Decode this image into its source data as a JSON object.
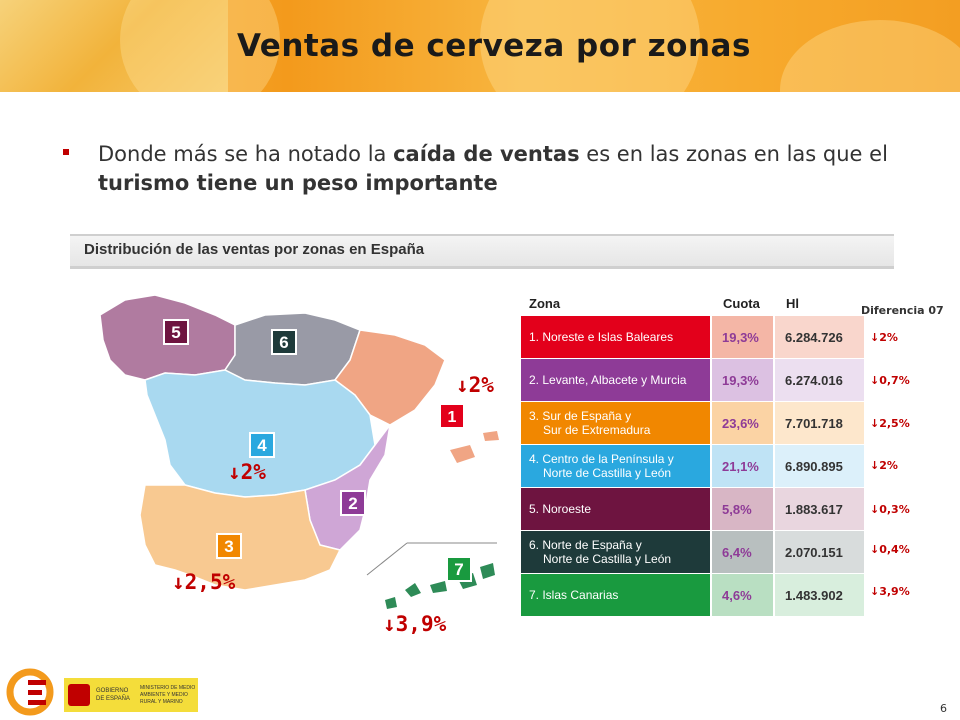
{
  "header": {
    "title": "Ventas de cerveza por zonas"
  },
  "bullet": {
    "part1": "Donde más se ha notado la ",
    "bold1": "caída de ventas",
    "part2": " es en las zonas en las que el ",
    "bold2": "turismo tiene un peso importante"
  },
  "section": {
    "title": "Distribución de las ventas por zonas en España"
  },
  "table": {
    "headers": {
      "zona": "Zona",
      "cuota": "Cuota",
      "hl": "Hl",
      "diff": "Diferencia 07"
    },
    "rows": [
      {
        "zona_l1": "1. Noreste e Islas Baleares",
        "zona_l2": "",
        "cuota": "19,3%",
        "hl": "6.284.726",
        "diff": "2%",
        "color": "#e3001b",
        "cuota_bg": "#f4b6a6",
        "hl_bg": "#f9d6cc"
      },
      {
        "zona_l1": "2. Levante, Albacete y Murcia",
        "zona_l2": "",
        "cuota": "19,3%",
        "hl": "6.274.016",
        "diff": "0,7%",
        "color": "#8e3b97",
        "cuota_bg": "#dcc1e2",
        "hl_bg": "#ecdff0"
      },
      {
        "zona_l1": "3. Sur de España y",
        "zona_l2": "Sur de Extremadura",
        "cuota": "23,6%",
        "hl": "7.701.718",
        "diff": "2,5%",
        "color": "#f18700",
        "cuota_bg": "#fbd3a4",
        "hl_bg": "#fde7cc"
      },
      {
        "zona_l1": "4. Centro de la Península y",
        "zona_l2": "Norte de Castilla y León",
        "cuota": "21,1%",
        "hl": "6.890.895",
        "diff": "2%",
        "color": "#2aa8df",
        "cuota_bg": "#bfe3f5",
        "hl_bg": "#dcf0fa"
      },
      {
        "zona_l1": "5. Noroeste",
        "zona_l2": "",
        "cuota": "5,8%",
        "hl": "1.883.617",
        "diff": "0,3%",
        "color": "#6e1440",
        "cuota_bg": "#d8b6c5",
        "hl_bg": "#e9d6df"
      },
      {
        "zona_l1": "6. Norte de España y",
        "zona_l2": "Norte de Castilla y León",
        "cuota": "6,4%",
        "hl": "2.070.151",
        "diff": "0,4%",
        "color": "#1e3a3a",
        "cuota_bg": "#b8bfbf",
        "hl_bg": "#d8dcdc"
      },
      {
        "zona_l1": "7. Islas Canarias",
        "zona_l2": "",
        "cuota": "4,6%",
        "hl": "1.483.902",
        "diff": "3,9%",
        "color": "#199a3f",
        "cuota_bg": "#b9dfc2",
        "hl_bg": "#d8eedd"
      }
    ]
  },
  "map_labels": {
    "zone_numbers": [
      "1",
      "2",
      "3",
      "4",
      "5",
      "6",
      "7"
    ],
    "drop_1": "2%",
    "drop_4": "2%",
    "drop_3": "2,5%",
    "drop_7": "3,9%"
  },
  "footer": {
    "page_number": "6",
    "logo_text": "Cerveceros de España",
    "gov_text_1": "GOBIERNO DE ESPAÑA",
    "gov_text_2": "MINISTERIO DE MEDIO AMBIENTE Y MEDIO RURAL Y MARINO"
  },
  "colors": {
    "accent": "#c00000",
    "header": "#f39a1c"
  },
  "icons": {
    "arrow": "down-arrow-icon",
    "bullet": "square-bullet-icon"
  }
}
